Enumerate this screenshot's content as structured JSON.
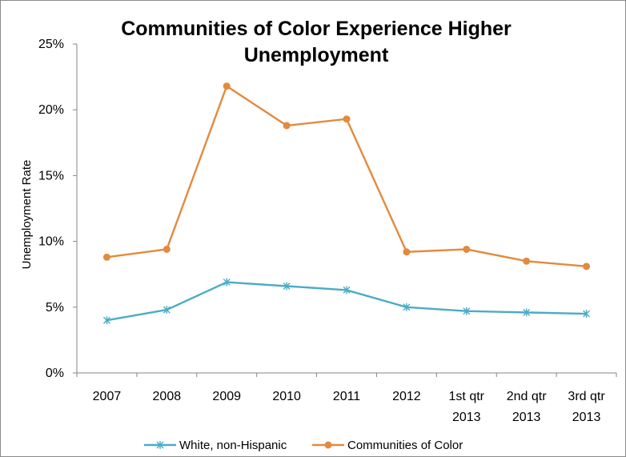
{
  "chart_data": {
    "type": "line",
    "title_lines": [
      "Communities of Color Experience Higher",
      "Unemployment"
    ],
    "xlabel": "",
    "ylabel": "Unemployment Rate",
    "ylim": [
      0,
      25
    ],
    "y_ticks": [
      "0%",
      "5%",
      "10%",
      "15%",
      "20%",
      "25%"
    ],
    "categories": [
      [
        "2007"
      ],
      [
        "2008"
      ],
      [
        "2009"
      ],
      [
        "2010"
      ],
      [
        "2011"
      ],
      [
        "2012"
      ],
      [
        "1st qtr",
        "2013"
      ],
      [
        "2nd qtr",
        "2013"
      ],
      [
        "3rd qtr",
        "2013"
      ]
    ],
    "series": [
      {
        "name": "White, non-Hispanic",
        "color": "#4bacc6",
        "marker": "star",
        "values": [
          4.0,
          4.8,
          6.9,
          6.6,
          6.3,
          5.0,
          4.7,
          4.6,
          4.5
        ]
      },
      {
        "name": "Communities of Color",
        "color": "#e38a3d",
        "marker": "circle",
        "values": [
          8.8,
          9.4,
          21.8,
          18.8,
          19.3,
          9.2,
          9.4,
          8.5,
          8.1
        ]
      }
    ],
    "grid": false,
    "legend_position": "bottom"
  }
}
